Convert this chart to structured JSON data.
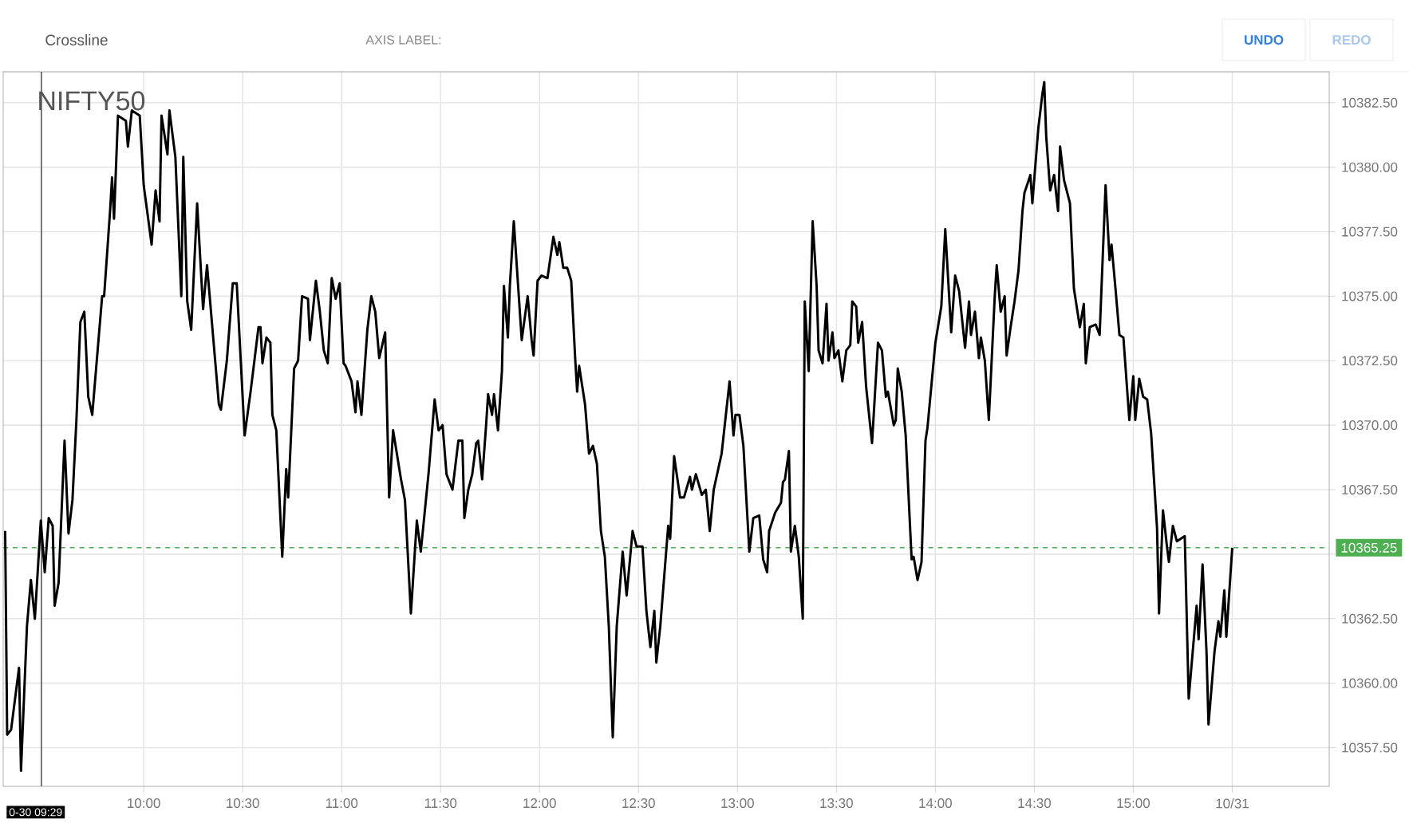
{
  "chart_data": {
    "type": "line",
    "title": "NIFTY50",
    "annotations": [
      "Crossline",
      "AXIS LABEL:",
      "UNDO",
      "REDO"
    ],
    "x": [
      9.3,
      9.31,
      9.33,
      9.37,
      9.38,
      9.41,
      9.43,
      9.45,
      9.48,
      9.5,
      9.52,
      9.54,
      9.55,
      9.57,
      9.6,
      9.62,
      9.64,
      9.66,
      9.68,
      9.7,
      9.72,
      9.74,
      9.79,
      9.8,
      9.83,
      9.84,
      9.85,
      9.87,
      9.91,
      9.92,
      9.94,
      9.98,
      10.0,
      10.04,
      10.06,
      10.08,
      10.09,
      10.12,
      10.13,
      10.16,
      10.19,
      10.2,
      10.22,
      10.24,
      10.27,
      10.3,
      10.32,
      10.34,
      10.38,
      10.39,
      10.42,
      10.45,
      10.47,
      10.51,
      10.54,
      10.58,
      10.59,
      10.6,
      10.62,
      10.64,
      10.65,
      10.67,
      10.7,
      10.72,
      10.73,
      10.76,
      10.78,
      10.8,
      10.83,
      10.84,
      10.87,
      10.89,
      10.91,
      10.93,
      10.95,
      10.97,
      10.99,
      11.01,
      11.02,
      11.05,
      11.07,
      11.08,
      11.1,
      11.13,
      11.15,
      11.17,
      11.19,
      11.22,
      11.24,
      11.26,
      11.3,
      11.32,
      11.35,
      11.38,
      11.4,
      11.44,
      11.47,
      11.49,
      11.51,
      11.53,
      11.56,
      11.59,
      11.61,
      11.62,
      11.64,
      11.66,
      11.68,
      11.69,
      11.71,
      11.73,
      11.74,
      11.76,
      11.77,
      11.79,
      11.81,
      11.82,
      11.84,
      11.85,
      11.87,
      11.89,
      11.91,
      11.94,
      11.96,
      11.97,
      11.99,
      12.01,
      12.04,
      12.07,
      12.09,
      12.1,
      12.12,
      12.14,
      12.16,
      12.18,
      12.19,
      12.2,
      12.23,
      12.25,
      12.27,
      12.29,
      12.31,
      12.33,
      12.35,
      12.37,
      12.39,
      12.42,
      12.44,
      12.47,
      12.49,
      12.52,
      12.54,
      12.56,
      12.58,
      12.59,
      12.61,
      12.65,
      12.66,
      12.68,
      12.71,
      12.73,
      12.76,
      12.77,
      12.79,
      12.82,
      12.84,
      12.86,
      12.88,
      12.9,
      12.92,
      12.96,
      12.98,
      12.99,
      13.01,
      13.03,
      13.06,
      13.08,
      13.11,
      13.13,
      13.15,
      13.16,
      13.19,
      13.22,
      13.23,
      13.24,
      13.26,
      13.27,
      13.29,
      13.31,
      13.33,
      13.34,
      13.36,
      13.38,
      13.4,
      13.41,
      13.43,
      13.45,
      13.46,
      13.48,
      13.49,
      13.51,
      13.53,
      13.55,
      13.57,
      13.58,
      13.6,
      13.61,
      13.63,
      13.65,
      13.68,
      13.71,
      13.73,
      13.75,
      13.76,
      13.79,
      13.8,
      13.81,
      13.83,
      13.85,
      13.88,
      13.89,
      13.91,
      13.93,
      13.95,
      13.96,
      14.0,
      14.03,
      14.05,
      14.08,
      14.1,
      14.12,
      14.15,
      14.17,
      14.18,
      14.2,
      14.22,
      14.23,
      14.25,
      14.27,
      14.3,
      14.31,
      14.33,
      14.35,
      14.36,
      14.38,
      14.4,
      14.42,
      14.44,
      14.45,
      14.48,
      14.49,
      14.52,
      14.54,
      14.55,
      14.56,
      14.58,
      14.6,
      14.62,
      14.63,
      14.65,
      14.68,
      14.7,
      14.73,
      14.75,
      14.76,
      14.78,
      14.81,
      14.83,
      14.86,
      14.88,
      14.89,
      14.91,
      14.93,
      14.95,
      14.98,
      15.0,
      15.01,
      15.03,
      15.05,
      15.07,
      15.09,
      15.12,
      15.13,
      15.15,
      15.17,
      15.18,
      15.2,
      15.22,
      15.26,
      15.28,
      15.32,
      15.33,
      15.35,
      15.37,
      15.38,
      15.41,
      15.43,
      15.44,
      15.46,
      15.47,
      15.5
    ],
    "values": [
      10365.9,
      10358.0,
      10358.2,
      10360.6,
      10356.6,
      10362.2,
      10364.0,
      10362.5,
      10366.3,
      10364.3,
      10366.4,
      10366.1,
      10363.0,
      10363.9,
      10369.4,
      10365.8,
      10367.1,
      10370.2,
      10374.0,
      10374.4,
      10371.1,
      10370.4,
      10375.0,
      10375.0,
      10378.3,
      10379.6,
      10378.0,
      10382.0,
      10381.8,
      10380.8,
      10382.2,
      10382.0,
      10379.3,
      10377.0,
      10379.1,
      10377.9,
      10382.0,
      10380.5,
      10382.2,
      10380.4,
      10375.0,
      10380.4,
      10374.8,
      10373.7,
      10378.6,
      10374.5,
      10376.2,
      10374.4,
      10370.8,
      10370.6,
      10372.5,
      10375.5,
      10375.5,
      10369.6,
      10371.3,
      10373.8,
      10373.8,
      10372.4,
      10373.4,
      10373.2,
      10370.4,
      10369.8,
      10364.9,
      10368.3,
      10367.2,
      10372.2,
      10372.5,
      10375.0,
      10374.9,
      10373.3,
      10375.6,
      10374.4,
      10372.9,
      10372.4,
      10375.7,
      10374.9,
      10375.5,
      10372.4,
      10372.3,
      10371.7,
      10370.5,
      10371.7,
      10370.4,
      10373.7,
      10375.0,
      10374.4,
      10372.6,
      10373.6,
      10367.2,
      10369.8,
      10367.9,
      10367.1,
      10362.7,
      10366.3,
      10365.1,
      10368.2,
      10371.0,
      10369.8,
      10370.0,
      10368.1,
      10367.5,
      10369.4,
      10369.4,
      10366.4,
      10367.5,
      10368.1,
      10369.3,
      10369.4,
      10367.9,
      10370.0,
      10371.2,
      10370.4,
      10371.2,
      10369.8,
      10372.1,
      10375.4,
      10373.4,
      10375.4,
      10377.9,
      10375.6,
      10373.3,
      10375.0,
      10373.3,
      10372.7,
      10375.6,
      10375.8,
      10375.7,
      10377.3,
      10376.6,
      10377.1,
      10376.1,
      10376.1,
      10375.6,
      10372.6,
      10371.3,
      10372.3,
      10370.8,
      10368.9,
      10369.2,
      10368.5,
      10365.9,
      10364.9,
      10362.2,
      10357.9,
      10362.2,
      10365.1,
      10363.4,
      10365.9,
      10365.3,
      10365.3,
      10362.8,
      10361.4,
      10362.8,
      10360.8,
      10362.2,
      10366.1,
      10365.6,
      10368.8,
      10367.2,
      10367.2,
      10368.0,
      10367.5,
      10368.1,
      10367.3,
      10367.5,
      10365.9,
      10367.5,
      10368.2,
      10368.9,
      10371.7,
      10369.6,
      10370.4,
      10370.4,
      10369.2,
      10365.1,
      10366.4,
      10366.5,
      10364.8,
      10364.3,
      10365.9,
      10366.6,
      10367.0,
      10367.8,
      10367.9,
      10369.0,
      10365.1,
      10366.1,
      10364.9,
      10362.5,
      10374.8,
      10372.1,
      10377.9,
      10375.4,
      10372.9,
      10372.4,
      10374.7,
      10372.5,
      10373.6,
      10372.6,
      10372.9,
      10371.7,
      10372.9,
      10373.1,
      10374.8,
      10374.6,
      10373.2,
      10374.0,
      10371.5,
      10369.3,
      10373.2,
      10372.9,
      10371.1,
      10371.3,
      10370.0,
      10370.2,
      10372.2,
      10371.3,
      10369.6,
      10364.8,
      10364.9,
      10364.0,
      10364.7,
      10369.4,
      10369.9,
      10373.2,
      10374.6,
      10377.6,
      10373.6,
      10375.8,
      10375.2,
      10373.0,
      10374.8,
      10373.5,
      10374.4,
      10372.6,
      10373.4,
      10372.5,
      10370.2,
      10375.0,
      10376.2,
      10374.4,
      10375.0,
      10372.7,
      10373.8,
      10374.8,
      10376.0,
      10378.3,
      10379.0,
      10379.7,
      10378.6,
      10381.5,
      10382.8,
      10383.3,
      10381.2,
      10379.1,
      10379.7,
      10378.3,
      10380.8,
      10379.5,
      10378.6,
      10375.3,
      10373.8,
      10374.7,
      10372.4,
      10373.8,
      10373.9,
      10373.5,
      10379.3,
      10376.4,
      10377.0,
      10375.3,
      10373.5,
      10373.4,
      10370.2,
      10371.9,
      10370.2,
      10371.8,
      10371.1,
      10371.0,
      10369.7,
      10366.0,
      10362.7,
      10366.7,
      10365.3,
      10364.7,
      10366.1,
      10365.5,
      10365.7,
      10359.4,
      10363.0,
      10361.7,
      10364.6,
      10361.2,
      10358.4,
      10361.2,
      10362.4,
      10361.8,
      10363.6,
      10361.8,
      10365.25
    ],
    "color": "#000000",
    "xlim": [
      9.29,
      15.99
    ],
    "ylim": [
      10356.0,
      10383.7
    ],
    "xticks": [
      {
        "value": 10,
        "label": "10:00"
      },
      {
        "value": 10.5,
        "label": "10:30"
      },
      {
        "value": 11,
        "label": "11:00"
      },
      {
        "value": 11.5,
        "label": "11:30"
      },
      {
        "value": 12,
        "label": "12:00"
      },
      {
        "value": 12.5,
        "label": "12:30"
      },
      {
        "value": 13,
        "label": "13:00"
      },
      {
        "value": 13.5,
        "label": "13:30"
      },
      {
        "value": 14,
        "label": "14:00"
      },
      {
        "value": 14.5,
        "label": "14:30"
      },
      {
        "value": 15,
        "label": "15:00"
      },
      {
        "value": 15.5,
        "label": "10/31"
      }
    ],
    "yticks": [
      {
        "value": 10357.5,
        "label": "10357.50"
      },
      {
        "value": 10360,
        "label": "10360.00"
      },
      {
        "value": 10362.5,
        "label": "10362.50"
      },
      {
        "value": 10365,
        "label": null
      },
      {
        "value": 10367.5,
        "label": "10367.50"
      },
      {
        "value": 10370,
        "label": "10370.00"
      },
      {
        "value": 10372.5,
        "label": "10372.50"
      },
      {
        "value": 10375,
        "label": "10375.00"
      },
      {
        "value": 10377.5,
        "label": "10377.50"
      },
      {
        "value": 10380,
        "label": "10380.00"
      },
      {
        "value": 10382.5,
        "label": "10382.50"
      }
    ],
    "ref_lines": [
      {
        "axis": "y",
        "value": 10365.25,
        "label": "10365.25",
        "color": "#4caf50",
        "line_style": "dashed"
      },
      {
        "axis": "x",
        "value": 9.483,
        "label": "0-30 09:29",
        "color": "#555555",
        "line_style": "solid"
      }
    ],
    "grid": true
  }
}
